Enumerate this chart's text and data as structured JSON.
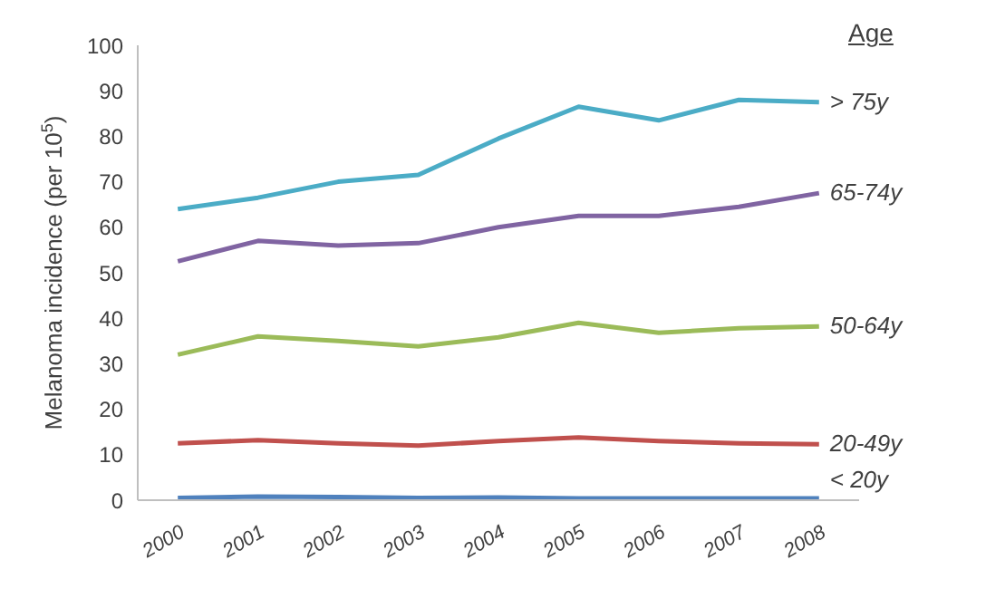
{
  "chart_data": {
    "type": "line",
    "ylabel": "Melanoma incidence (per 10$^{5}$)",
    "legend_title": "Age",
    "categories": [
      "2000",
      "2001",
      "2002",
      "2003",
      "2004",
      "2005",
      "2006",
      "2007",
      "2008"
    ],
    "series": [
      {
        "name": "> 75y",
        "color": "#4bacc6",
        "values": [
          64,
          66.5,
          70,
          71.5,
          79.5,
          86.5,
          83.5,
          88,
          87.5
        ]
      },
      {
        "name": "65-74y",
        "color": "#8064a2",
        "values": [
          52.5,
          57,
          56,
          56.5,
          60,
          62.5,
          62.5,
          64.5,
          67.5
        ]
      },
      {
        "name": "50-64y",
        "color": "#9bbb59",
        "values": [
          32,
          36,
          35,
          33.8,
          35.8,
          39,
          36.8,
          37.8,
          38.2
        ]
      },
      {
        "name": "20-49y",
        "color": "#c0504d",
        "values": [
          12.5,
          13.2,
          12.5,
          12,
          13,
          13.8,
          13,
          12.5,
          12.3
        ]
      },
      {
        "name": "< 20y",
        "color": "#4f81bd",
        "values": [
          0.5,
          0.8,
          0.7,
          0.5,
          0.6,
          0.4,
          0.4,
          0.4,
          0.4
        ]
      }
    ],
    "ylim": [
      0,
      100
    ],
    "yticks": [
      0,
      10,
      20,
      30,
      40,
      50,
      60,
      70,
      80,
      90,
      100
    ],
    "grid": false,
    "legend": false,
    "marker": "none",
    "line_style": "solid"
  }
}
